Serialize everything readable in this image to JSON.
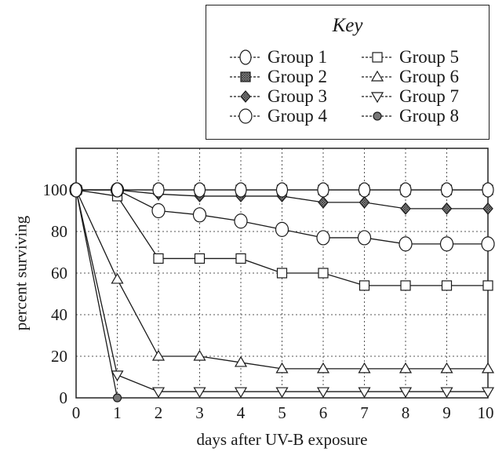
{
  "chart_data": {
    "type": "line",
    "title": "",
    "xlabel": "days after UV-B exposure",
    "ylabel": "percent surviving",
    "xlim": [
      0,
      10
    ],
    "ylim": [
      0,
      120
    ],
    "grid": true,
    "x_ticks": [
      "0",
      "1",
      "2",
      "3",
      "4",
      "5",
      "6",
      "7",
      "8",
      "9",
      "10"
    ],
    "y_ticks": [
      "0",
      "20",
      "40",
      "60",
      "80",
      "100"
    ],
    "legend": {
      "title": "Key",
      "placement": "top-right, above plot"
    },
    "series": [
      {
        "name": "Group 1",
        "marker": "circle-open",
        "x": [
          0,
          1,
          2,
          3,
          4,
          5,
          6,
          7,
          8,
          9,
          10
        ],
        "values": [
          100,
          100,
          100,
          100,
          100,
          100,
          100,
          100,
          100,
          100,
          100
        ]
      },
      {
        "name": "Group 2",
        "marker": "square-hatched",
        "x": [
          0,
          1,
          2,
          3,
          4,
          5,
          6,
          7,
          8,
          9,
          10
        ],
        "values": [
          100,
          100,
          100,
          100,
          100,
          100,
          100,
          100,
          100,
          100,
          100
        ]
      },
      {
        "name": "Group 3",
        "marker": "diamond-hatched",
        "x": [
          0,
          1,
          2,
          3,
          4,
          5,
          6,
          7,
          8,
          9,
          10
        ],
        "values": [
          100,
          100,
          98,
          97,
          97,
          97,
          94,
          94,
          91,
          91,
          91
        ]
      },
      {
        "name": "Group 4",
        "marker": "hexagon-open",
        "x": [
          0,
          1,
          2,
          3,
          4,
          5,
          6,
          7,
          8,
          9,
          10
        ],
        "values": [
          100,
          100,
          90,
          88,
          85,
          81,
          77,
          77,
          74,
          74,
          74
        ]
      },
      {
        "name": "Group 5",
        "marker": "square-open",
        "x": [
          0,
          1,
          2,
          3,
          4,
          5,
          6,
          7,
          8,
          9,
          10
        ],
        "values": [
          100,
          97,
          67,
          67,
          67,
          60,
          60,
          54,
          54,
          54,
          54
        ]
      },
      {
        "name": "Group 6",
        "marker": "triangle-up-open",
        "x": [
          0,
          1,
          2,
          3,
          4,
          5,
          6,
          7,
          8,
          9,
          10
        ],
        "values": [
          100,
          57,
          20,
          20,
          17,
          14,
          14,
          14,
          14,
          14,
          14
        ]
      },
      {
        "name": "Group 7",
        "marker": "triangle-down-open",
        "x": [
          0,
          1,
          2,
          3,
          4,
          5,
          6,
          7,
          8,
          9,
          10
        ],
        "values": [
          100,
          11,
          3,
          3,
          3,
          3,
          3,
          3,
          3,
          3,
          3
        ]
      },
      {
        "name": "Group 8",
        "marker": "circle-filled",
        "x": [
          0,
          1
        ],
        "values": [
          100,
          0
        ]
      }
    ],
    "colors": {
      "line": "#1a1a1a",
      "grid": "#555555",
      "marker_fill": "#ffffff",
      "hatch_fill": "#9a9a9a",
      "filled_marker": "#777777"
    }
  }
}
